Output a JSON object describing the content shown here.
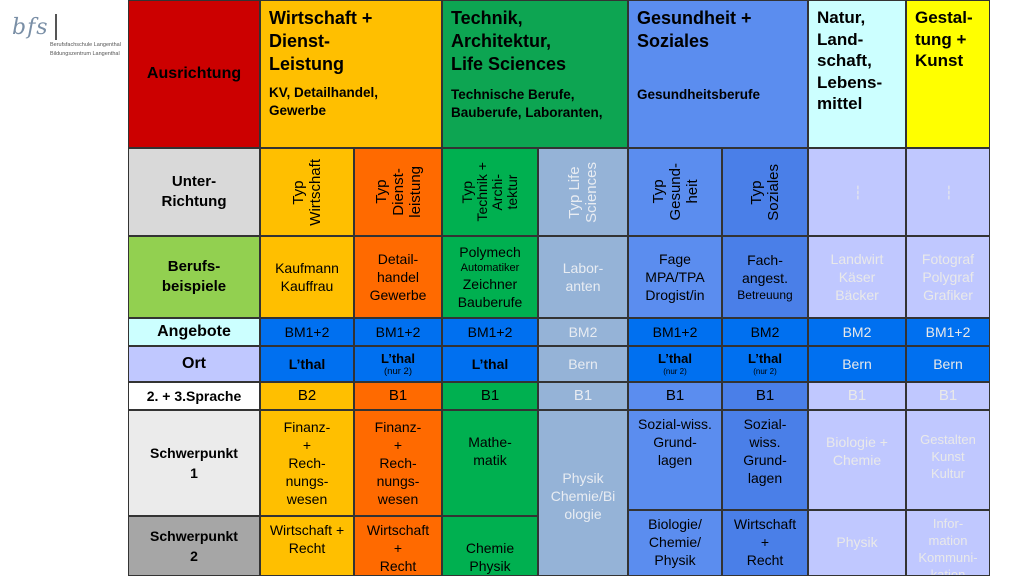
{
  "logo": {
    "name": "bfs",
    "sub1": "Berufsfachschule Langenthal",
    "sub2": "Bildungszentrum Langenthal"
  },
  "colors": {
    "red": "#cc0000",
    "orange": "#ffbf00",
    "green": "#0da552",
    "blue": "#5b8def",
    "lightcyan": "#ccffff",
    "yellow": "#ffff00",
    "deeporange": "#ff6a00",
    "midgreen": "#00b050",
    "paleblue": "#95b3d7",
    "brightblue": "#4a7fe8",
    "lightgrey": "#d9d9d9",
    "lightpurple": "#c0c8ff"
  },
  "header": {
    "ausrichtung": "Ausrichtung",
    "wirtschaft": {
      "title": "Wirtschaft +\nDienst-\nLeistung",
      "sub": "KV, Detailhandel,\nGewerbe"
    },
    "technik": {
      "title": "Technik,\nArchitektur,\nLife Sciences",
      "sub": "Technische Berufe,\nBauberufe, Laboranten,"
    },
    "gesundheit": {
      "title": "Gesundheit +\nSoziales",
      "sub": "Gesundheitsberufe"
    },
    "natur": {
      "title": "Natur,\nLand-\nschaft,\nLebens-\nmittel"
    },
    "gestaltung": {
      "title": "Gestal-\ntung +\nKunst"
    }
  },
  "rows": {
    "unter": "Unter-\nRichtung",
    "berufs": "Berufs-\nbeispiele",
    "angebote": "Angebote",
    "ort": "Ort",
    "sprache": "2. + 3.Sprache",
    "sp1": "Schwerpunkt\n1",
    "sp2": "Schwerpunkt\n2"
  },
  "unter": [
    "Typ\nWirtschaft",
    "Typ\nDienst-\nleistung",
    "Typ\nTechnik +\nArchi-\ntektur",
    "Typ Life\nSciences",
    "Typ\nGesund-\nheit",
    "Typ\nSoziales",
    "---",
    "---"
  ],
  "berufs": {
    "c1": "Kaufmann\nKauffrau",
    "c2": "Detail-\nhandel\nGewerbe",
    "c3a": "Polymech",
    "c3b": "Automatiker",
    "c3c": "Zeichner\nBauberufe",
    "c4": "Labor-\nanten",
    "c5": "Fage\nMPA/TPA\nDrogist/in",
    "c6a": "Fach-\nangest.",
    "c6b": "Betreuung",
    "c7": "Landwirt\nKäser\nBäcker",
    "c8": "Fotograf\nPolygraf\nGrafiker"
  },
  "angebote": [
    "BM1+2",
    "BM1+2",
    "BM1+2",
    "BM2",
    "BM1+2",
    "BM2",
    "BM2",
    "BM1+2"
  ],
  "ort": {
    "lthal": "L’thal",
    "nur2": "(nur 2)",
    "bern": "Bern"
  },
  "sprache": [
    "B2",
    "B1",
    "B1",
    "B1",
    "B1",
    "B1",
    "B1",
    "B1"
  ],
  "sp1": {
    "c1": "Finanz-\n+\nRech-\nnungs-\nwesen",
    "c2": "Finanz-\n+\nRech-\nnungs-\nwesen",
    "c3": "Mathe-\nmatik",
    "c4": "Physik\nChemie/Bi\nologie",
    "c5": "Sozial-wiss.\nGrund-\nlagen",
    "c6": "Sozial-\nwiss.\nGrund-\nlagen",
    "c7": "Biologie +\nChemie",
    "c8": "Gestalten\nKunst\nKultur"
  },
  "sp2": {
    "c1": "Wirtschaft +\nRecht",
    "c2": "Wirtschaft\n+\nRecht",
    "c3": "Chemie\nPhysik",
    "c5": "Biologie/\nChemie/\nPhysik",
    "c6": "Wirtschaft\n+\nRecht",
    "c7": "Physik",
    "c8": "Infor-\nmation\nKommuni-\nkation"
  }
}
